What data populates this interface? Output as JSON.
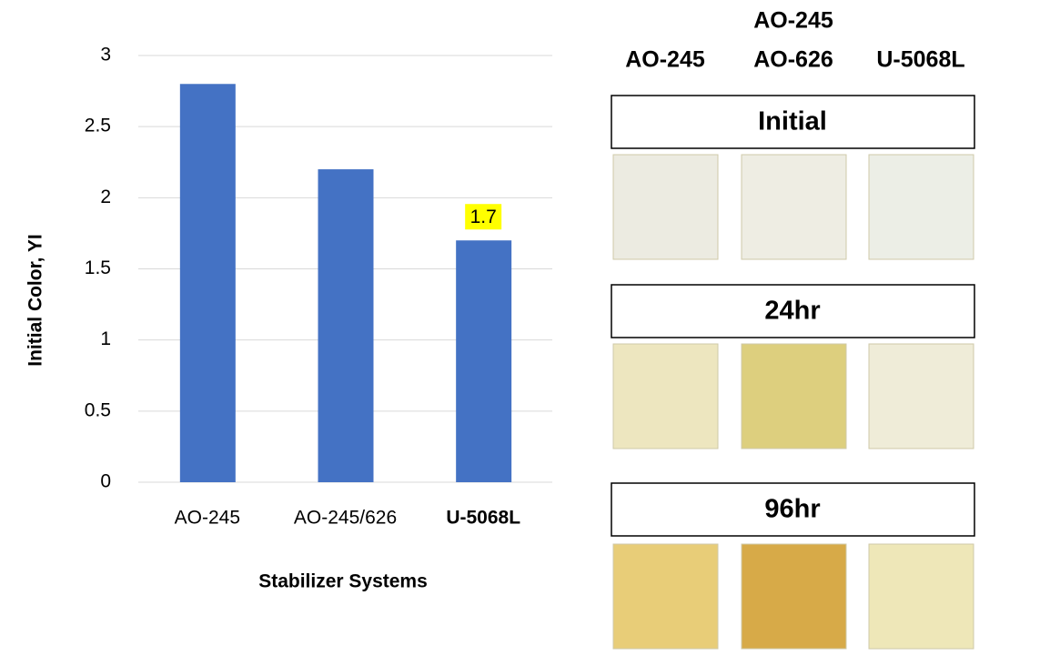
{
  "chart_data": {
    "type": "bar",
    "y_label": "Initial Color, YI",
    "x_label": "Stabilizer Systems",
    "categories": [
      "AO-245",
      "AO-245/626",
      "U-5068L"
    ],
    "category_colors": [
      "#000000",
      "#000000",
      "#2e75b6"
    ],
    "category_bold": [
      false,
      false,
      true
    ],
    "values": [
      2.8,
      2.2,
      1.7
    ],
    "data_labels": [
      false,
      false,
      true
    ],
    "data_label_highlight": "#ffff00",
    "color": "#4472c4",
    "ylim": [
      0,
      3
    ],
    "yticks": [
      0,
      0.5,
      1,
      1.5,
      2,
      2.5,
      3
    ],
    "grid": true
  },
  "panel": {
    "columns": [
      {
        "lines": [
          "AO-245"
        ],
        "color": "#000000"
      },
      {
        "lines": [
          "AO-245",
          "AO-626"
        ],
        "color": "#000000"
      },
      {
        "lines": [
          "U-5068L"
        ],
        "color": "#2e75b6"
      }
    ],
    "rows": [
      {
        "label": "Initial",
        "swatches": [
          "#ecebe1",
          "#eeede3",
          "#eceee6"
        ]
      },
      {
        "label": "24hr",
        "swatches": [
          "#ede6bf",
          "#ddcf7e",
          "#efecd8"
        ]
      },
      {
        "label": "96hr",
        "swatches": [
          "#e8cd78",
          "#d7aa48",
          "#eee7b8"
        ]
      }
    ]
  }
}
